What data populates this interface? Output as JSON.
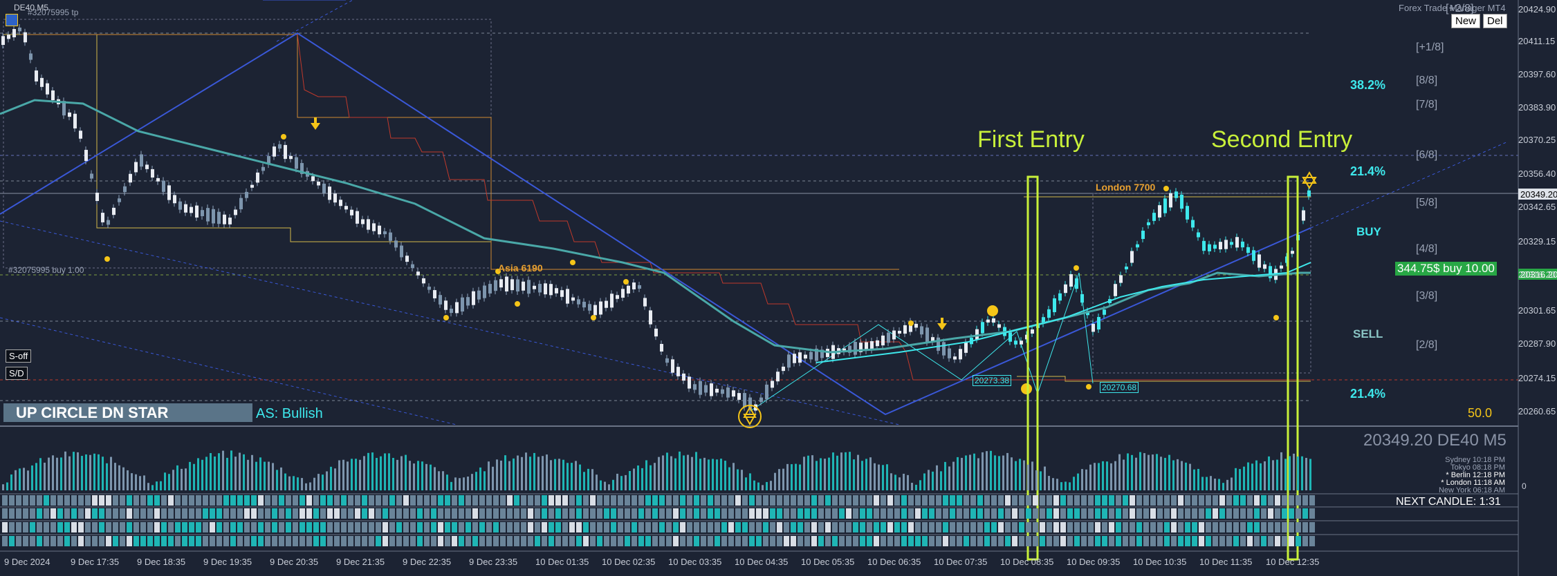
{
  "window": {
    "symbol": "DE40,M5",
    "order_line_label": "#32075995 buy 1.00",
    "small_top_label": "#32075995 tp"
  },
  "panel": {
    "title": "Forex Trade Manager MT4",
    "buttons": {
      "new": "New",
      "del": "Del"
    }
  },
  "annotations": {
    "first_entry": "First Entry",
    "second_entry": "Second Entry",
    "london": "London 7700",
    "asia": "Asia 6190",
    "pivot_low_1": "20273.38",
    "pivot_low_2": "20270.68",
    "up_circle_dn_star": "UP CIRCLE  DN STAR",
    "bias": "AS: Bullish",
    "buy_tag": "344.75$ buy 10.00",
    "buy": "BUY",
    "sell": "SELL",
    "fib_38": "38.2%",
    "fib_21_top": "21.4%",
    "fib_21_bottom": "21.4%",
    "fib_50": "50.0",
    "murrey": [
      "[+1/8]",
      "[8/8]",
      "[7/8]",
      "[6/8]",
      "[5/8]",
      "[4/8]",
      "[3/8]",
      "[2/8]",
      "[+2/8]"
    ],
    "soff": "S-off",
    "sd": "S/D"
  },
  "price_axis": [
    "20424.90",
    "20411.15",
    "20397.60",
    "20383.90",
    "20370.25",
    "20356.40",
    "20349.20",
    "20342.65",
    "20329.15",
    "20316.20",
    "20301.65",
    "20287.90",
    "20274.15",
    "20260.65"
  ],
  "current_price_label": "20349.20",
  "buy_price_label": "20316.20",
  "subwindow": {
    "price_symbol": "20349.20 DE40 M5",
    "clocks": [
      "Sydney 10:18 PM",
      "Tokyo 08:18 PM",
      "* Berlin 12:18 PM",
      "* London 11:18 AM",
      "New York 06:18 AM"
    ],
    "next_candle": "NEXT CANDLE: 1:31",
    "zero": "0"
  },
  "time_axis": [
    "9 Dec 2024",
    "9 Dec 17:35",
    "9 Dec 18:35",
    "9 Dec 19:35",
    "9 Dec 20:35",
    "9 Dec 21:35",
    "9 Dec 22:35",
    "9 Dec 23:35",
    "10 Dec 01:35",
    "10 Dec 02:35",
    "10 Dec 03:35",
    "10 Dec 04:35",
    "10 Dec 05:35",
    "10 Dec 06:35",
    "10 Dec 07:35",
    "10 Dec 08:35",
    "10 Dec 09:35",
    "10 Dec 10:35",
    "10 Dec 11:35",
    "10 Dec 12:35"
  ],
  "colors": {
    "background": "#1c2333",
    "bull_candle": "#3ee8ec",
    "bear_candle": "#e9ecf2",
    "entry_box": "#c8f03a",
    "ma": "#4aa8a8",
    "trend_blue": "#3a58d8",
    "red_step": "#c0392b"
  }
}
